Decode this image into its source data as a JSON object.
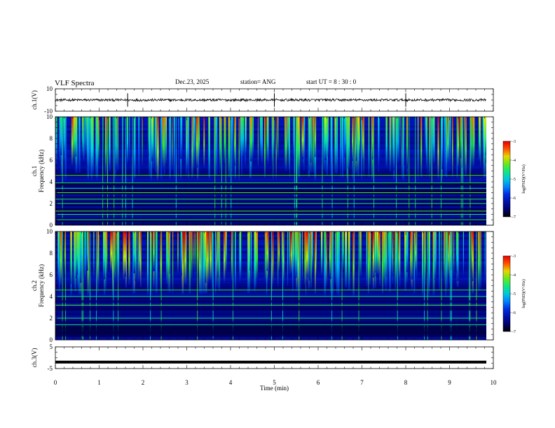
{
  "header": {
    "title": "VLF Spectra",
    "date": "Dec.23, 2025",
    "station": "station= ANG",
    "start_ut": "start  UT  =   8  : 30 : 0"
  },
  "chart_data": [
    {
      "type": "line",
      "name": "ch1-waveform",
      "ylabel": "ch.1(V)",
      "ylim": [
        -10,
        10
      ],
      "yticks": [
        "10",
        "-10"
      ],
      "baseline": 0,
      "spike_times_min": [
        1.65,
        5.0,
        8.0
      ]
    },
    {
      "type": "heatmap",
      "name": "ch1-spectrogram",
      "ylabel": "ch.1\nFrequency (kHz)",
      "ylabel_lines": [
        "ch.1",
        "Frequency  (kHz)"
      ],
      "ylim": [
        0,
        10
      ],
      "yticks": [
        "0",
        "2",
        "4",
        "6",
        "8",
        "10"
      ],
      "colorbar": {
        "label": "log(PSD)(V²/Hz)",
        "range": [
          -7,
          -3
        ],
        "ticks": [
          "-3",
          "-4",
          "-5",
          "-6",
          "-7"
        ]
      },
      "persistent_lines_khz": [
        0.5,
        1.0,
        1.3,
        2.0,
        2.4,
        3.0,
        3.4,
        3.9,
        4.6
      ]
    },
    {
      "type": "heatmap",
      "name": "ch2-spectrogram",
      "ylabel_lines": [
        "ch.2",
        "Frequency  (kHz)"
      ],
      "ylim": [
        0,
        10
      ],
      "yticks": [
        "0",
        "2",
        "4",
        "6",
        "8",
        "10"
      ],
      "colorbar": {
        "label": "log(PSD)(V²/Hz)",
        "range": [
          -7,
          -3
        ],
        "ticks": [
          "-3",
          "-4",
          "-5",
          "-6",
          "-7"
        ]
      },
      "persistent_lines_khz": [
        1.4,
        2.0,
        3.2,
        4.0,
        4.6
      ]
    },
    {
      "type": "line",
      "name": "ch3-waveform",
      "ylabel": "ch.3(V)",
      "ylim": [
        -5,
        5
      ],
      "yticks": [
        "5",
        "-5"
      ],
      "baseline": -2
    }
  ],
  "xaxis": {
    "label": "Time  (min)",
    "range": [
      0,
      10
    ],
    "ticks": [
      "0",
      "1",
      "2",
      "3",
      "4",
      "5",
      "6",
      "7",
      "8",
      "9",
      "10"
    ]
  }
}
